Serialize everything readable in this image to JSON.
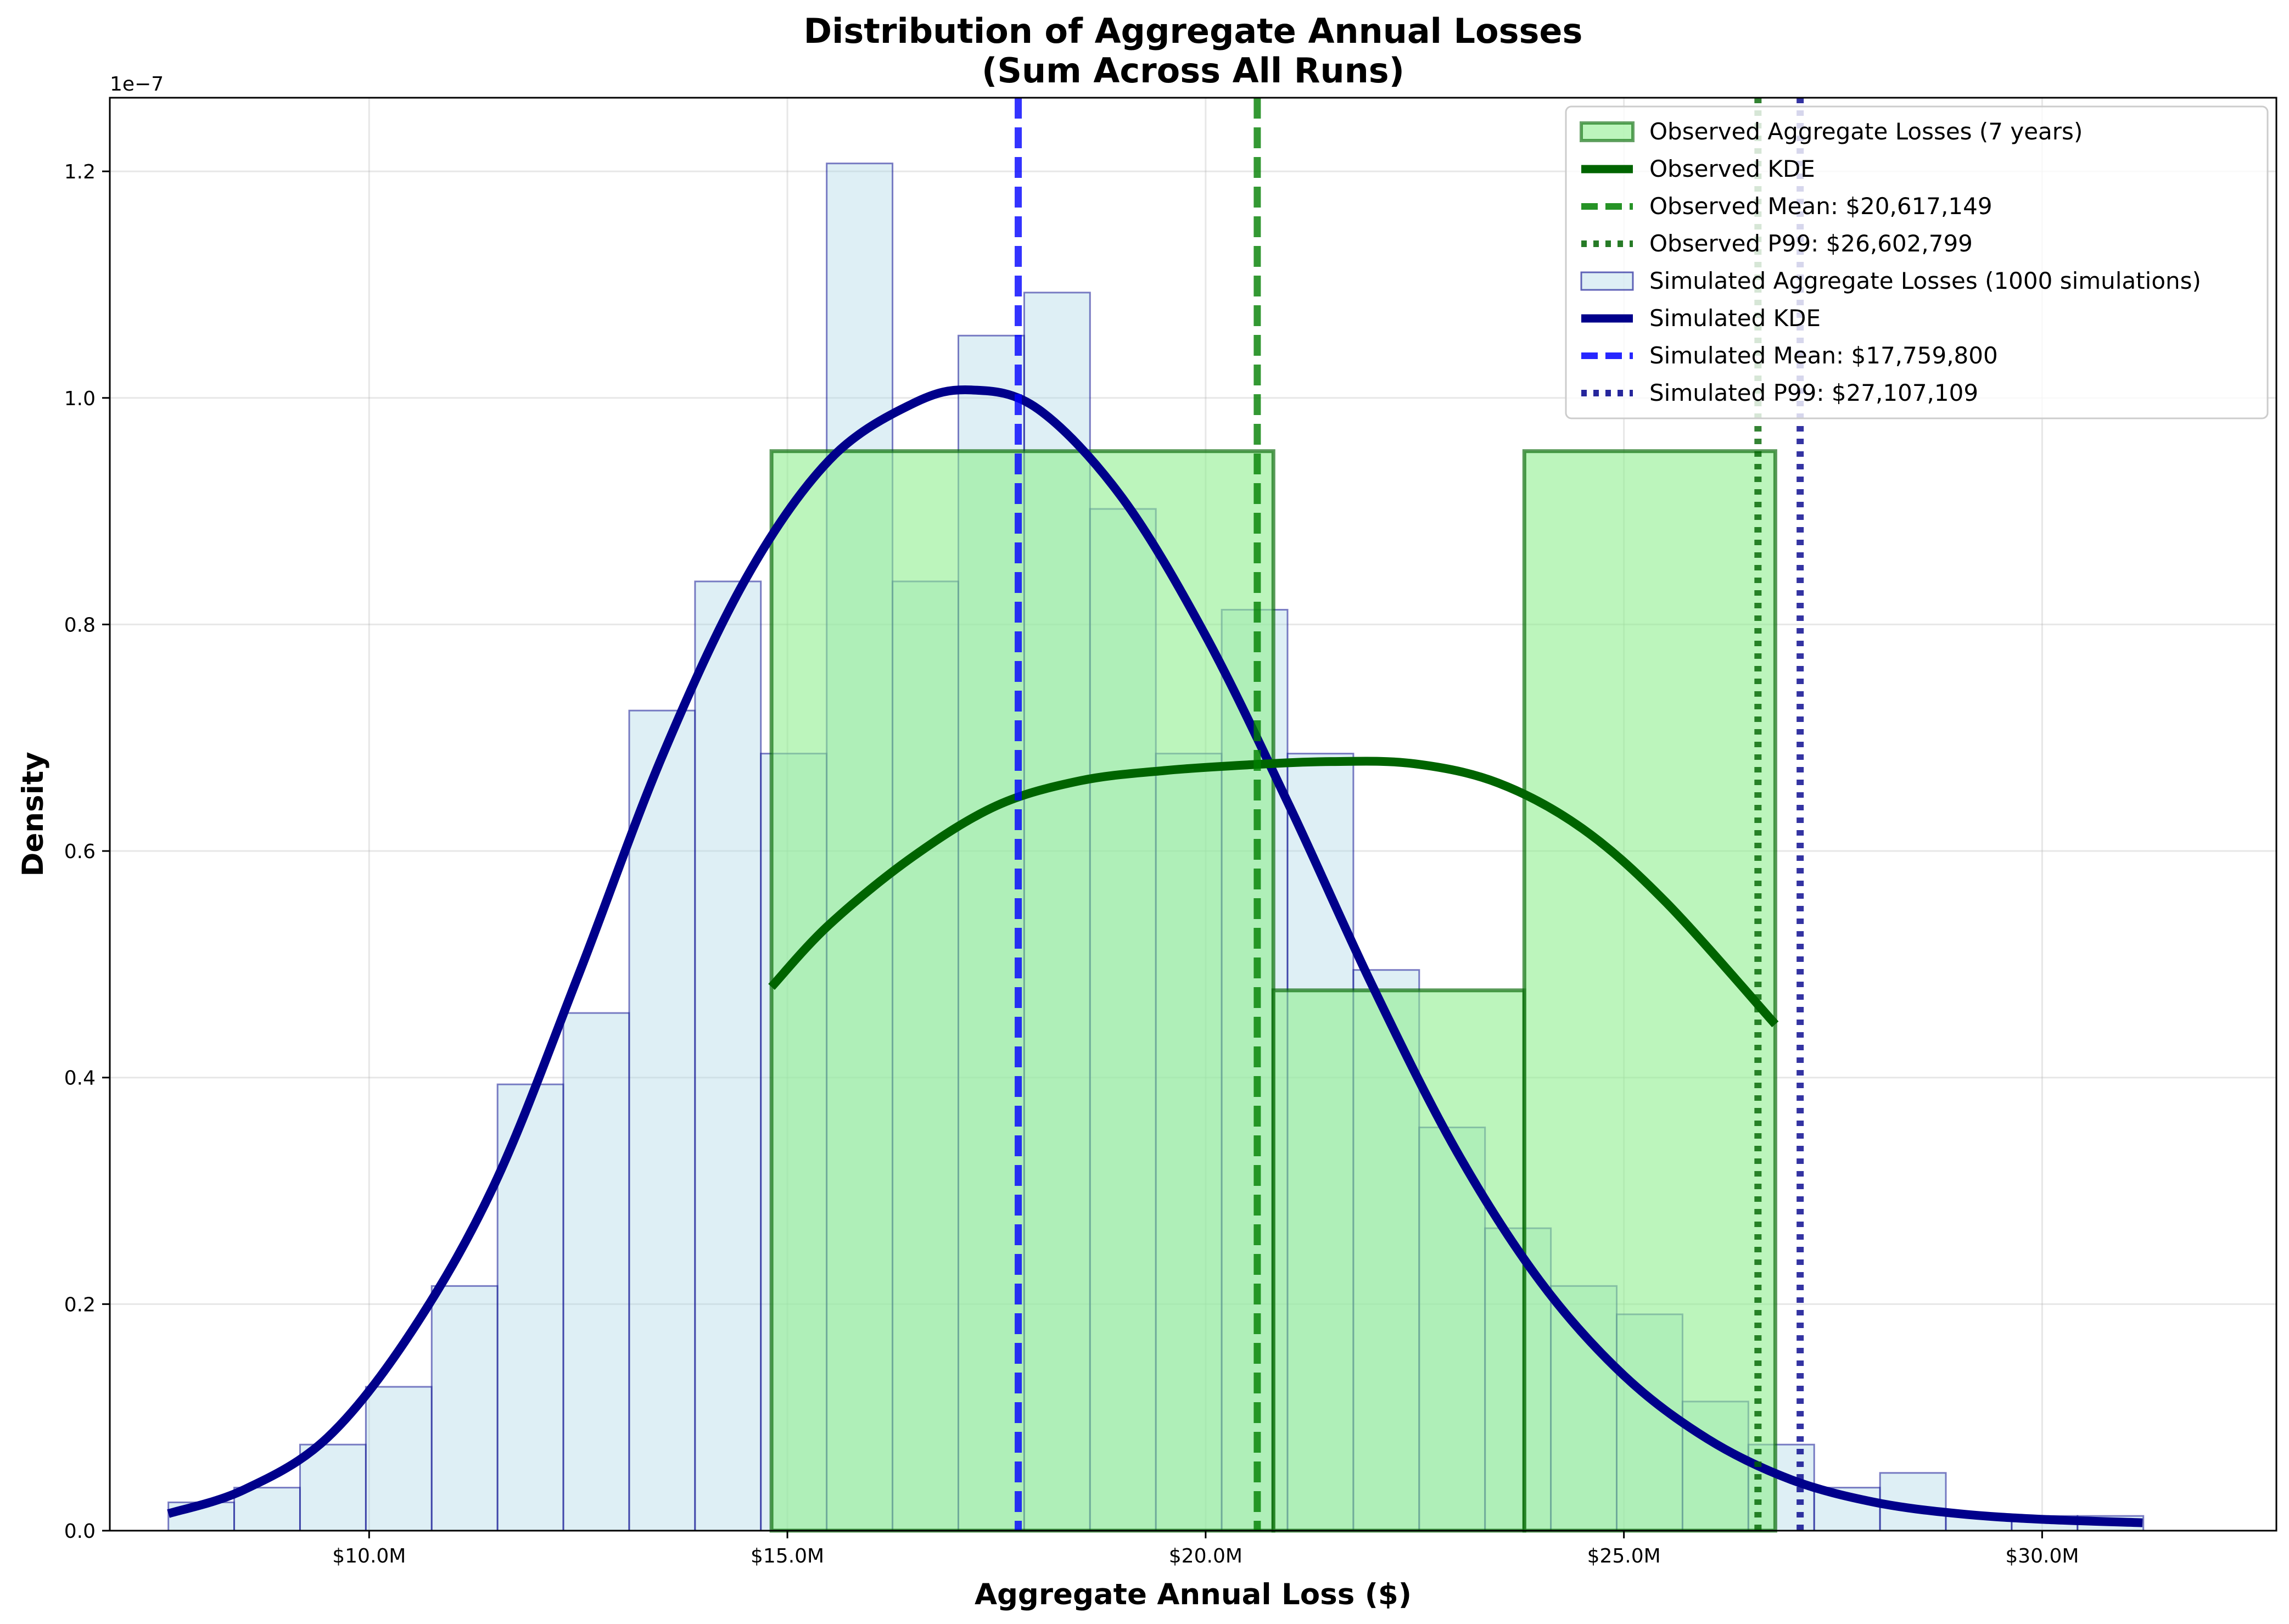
{
  "chart_data": {
    "type": "bar",
    "title": [
      "Distribution of Aggregate Annual Losses",
      "(Sum Across All Runs)"
    ],
    "xlabel": "Aggregate Annual Loss ($)",
    "ylabel": "Density",
    "y_offset_label": "1e−7",
    "xlim": [
      6.9,
      32.8
    ],
    "ylim": [
      0,
      1.265
    ],
    "x_units": "millions of dollars",
    "y_units": "density × 1e-7",
    "grid": true,
    "legend_position": "top-right",
    "x_ticks": [
      {
        "value": 10,
        "label": "$10.0M"
      },
      {
        "value": 15,
        "label": "$15.0M"
      },
      {
        "value": 20,
        "label": "$20.0M"
      },
      {
        "value": 25,
        "label": "$25.0M"
      },
      {
        "value": 30,
        "label": "$30.0M"
      }
    ],
    "y_ticks": [
      {
        "value": 0,
        "label": "0.0"
      },
      {
        "value": 0.2,
        "label": "0.2"
      },
      {
        "value": 0.4,
        "label": "0.4"
      },
      {
        "value": 0.6,
        "label": "0.6"
      },
      {
        "value": 0.8,
        "label": "0.8"
      },
      {
        "value": 1.0,
        "label": "1.0"
      },
      {
        "value": 1.2,
        "label": "1.2"
      }
    ],
    "colors": {
      "simulated_fill": "#add8e6",
      "simulated_edge": "#00008b",
      "observed_fill": "#90ee90",
      "observed_edge": "#006400",
      "simulated_kde": "#00008b",
      "observed_kde": "#006400",
      "simulated_mean": "#0000ff",
      "simulated_p99": "#00008b",
      "observed_mean": "#008000",
      "observed_p99": "#006400"
    },
    "simulated_histogram": {
      "name": "Simulated Aggregate Losses (1000 simulations)",
      "bin_start": 7.6,
      "bin_width": 0.787,
      "values": [
        0.025,
        0.038,
        0.076,
        0.127,
        0.216,
        0.394,
        0.457,
        0.724,
        0.838,
        0.686,
        1.207,
        0.838,
        1.055,
        1.093,
        0.902,
        0.686,
        0.813,
        0.686,
        0.495,
        0.356,
        0.267,
        0.216,
        0.191,
        0.114,
        0.076,
        0.038,
        0.051,
        0.013,
        0.013,
        0.013
      ]
    },
    "observed_histogram": {
      "name": "Observed Aggregate Losses (7 years)",
      "bins": [
        {
          "x0": 14.81,
          "x1": 20.81,
          "value": 0.953
        },
        {
          "x0": 20.81,
          "x1": 23.81,
          "value": 0.477
        },
        {
          "x0": 23.81,
          "x1": 26.81,
          "value": 0.953
        }
      ]
    },
    "simulated_kde": {
      "name": "Simulated KDE",
      "points": [
        [
          7.6,
          0.015
        ],
        [
          8.5,
          0.036
        ],
        [
          9.5,
          0.082
        ],
        [
          10.5,
          0.175
        ],
        [
          11.5,
          0.306
        ],
        [
          12.5,
          0.49
        ],
        [
          13.5,
          0.683
        ],
        [
          14.5,
          0.84
        ],
        [
          15.5,
          0.945
        ],
        [
          16.5,
          0.995
        ],
        [
          17.2,
          1.007
        ],
        [
          18.0,
          0.99
        ],
        [
          19.0,
          0.912
        ],
        [
          20.0,
          0.79
        ],
        [
          21.0,
          0.64
        ],
        [
          22.0,
          0.48
        ],
        [
          23.0,
          0.335
        ],
        [
          24.0,
          0.22
        ],
        [
          25.0,
          0.137
        ],
        [
          26.0,
          0.081
        ],
        [
          27.0,
          0.045
        ],
        [
          28.0,
          0.025
        ],
        [
          29.0,
          0.015
        ],
        [
          30.0,
          0.01
        ],
        [
          31.2,
          0.007
        ]
      ]
    },
    "observed_kde": {
      "name": "Observed KDE",
      "points": [
        [
          14.81,
          0.48
        ],
        [
          15.5,
          0.535
        ],
        [
          16.5,
          0.595
        ],
        [
          17.5,
          0.64
        ],
        [
          18.5,
          0.662
        ],
        [
          19.5,
          0.671
        ],
        [
          20.5,
          0.676
        ],
        [
          21.5,
          0.679
        ],
        [
          22.5,
          0.677
        ],
        [
          23.5,
          0.66
        ],
        [
          24.5,
          0.62
        ],
        [
          25.5,
          0.555
        ],
        [
          26.81,
          0.447
        ]
      ]
    },
    "reference_lines": [
      {
        "name": "Observed Mean: $20,617,149",
        "x": 20.617149,
        "style": "dashed",
        "color_key": "observed_mean"
      },
      {
        "name": "Observed P99: $26,602,799",
        "x": 26.602799,
        "style": "dotted",
        "color_key": "observed_p99"
      },
      {
        "name": "Simulated Mean: $17,759,800",
        "x": 17.7598,
        "style": "dashed",
        "color_key": "simulated_mean"
      },
      {
        "name": "Simulated P99: $27,107,109",
        "x": 27.107109,
        "style": "dotted",
        "color_key": "simulated_p99"
      }
    ],
    "legend": [
      {
        "label": "Observed Aggregate Losses (7 years)",
        "kind": "patch",
        "fill_key": "observed_fill",
        "edge_key": "observed_edge"
      },
      {
        "label": "Observed KDE",
        "kind": "line",
        "color_key": "observed_kde",
        "style": "solid"
      },
      {
        "label": "Observed Mean: $20,617,149",
        "kind": "line",
        "color_key": "observed_mean",
        "style": "dashed"
      },
      {
        "label": "Observed P99: $26,602,799",
        "kind": "line",
        "color_key": "observed_p99",
        "style": "dotted"
      },
      {
        "label": "Simulated Aggregate Losses (1000 simulations)",
        "kind": "patch",
        "fill_key": "simulated_fill",
        "edge_key": "simulated_edge"
      },
      {
        "label": "Simulated KDE",
        "kind": "line",
        "color_key": "simulated_kde",
        "style": "solid"
      },
      {
        "label": "Simulated Mean: $17,759,800",
        "kind": "line",
        "color_key": "simulated_mean",
        "style": "dashed"
      },
      {
        "label": "Simulated P99: $27,107,109",
        "kind": "line",
        "color_key": "simulated_p99",
        "style": "dotted"
      }
    ]
  }
}
